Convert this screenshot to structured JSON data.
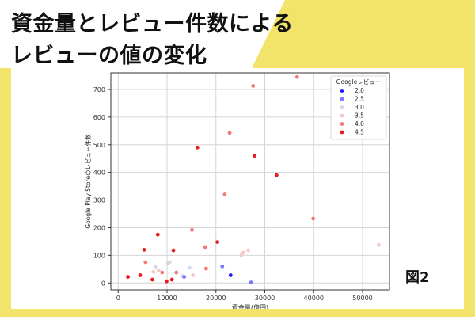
{
  "header": {
    "title_line1": "資金量とレビュー件数による",
    "title_line2": "レビューの値の変化"
  },
  "figure_label": "図2",
  "colors": {
    "background_yellow": "#f2e46a",
    "banner_stripe": "#e9d94f"
  },
  "chart_data": {
    "type": "scatter",
    "title": "",
    "xlabel": "資金量(億円)",
    "ylabel": "Google Play Storeのレビュー件数",
    "xlim": [
      -1500,
      55500
    ],
    "ylim": [
      -25,
      760
    ],
    "xticks": [
      0,
      10000,
      20000,
      30000,
      40000,
      50000
    ],
    "xtick_labels": [
      "0",
      "10000",
      "20000",
      "30000",
      "40000",
      "50000"
    ],
    "yticks": [
      0,
      100,
      200,
      300,
      400,
      500,
      600,
      700
    ],
    "ytick_labels": [
      "0",
      "100",
      "200",
      "300",
      "400",
      "500",
      "600",
      "700"
    ],
    "grid": true,
    "legend": {
      "title": "Googleレビュー",
      "placement": "top-right",
      "entries": [
        {
          "label": "2.0",
          "value": 2.0,
          "color": "#1a1aff"
        },
        {
          "label": "2.5",
          "value": 2.5,
          "color": "#7a7aff"
        },
        {
          "label": "3.0",
          "value": 3.0,
          "color": "#d6d6f5"
        },
        {
          "label": "3.5",
          "value": 3.5,
          "color": "#f7c8c8"
        },
        {
          "label": "4.0",
          "value": 4.0,
          "color": "#f27878"
        },
        {
          "label": "4.5",
          "value": 4.5,
          "color": "#e81c1c"
        }
      ]
    },
    "points": [
      {
        "x": 2000,
        "y": 22,
        "rating": 4.5
      },
      {
        "x": 4500,
        "y": 28,
        "rating": 4.5
      },
      {
        "x": 5300,
        "y": 120,
        "rating": 4.5
      },
      {
        "x": 5600,
        "y": 75,
        "rating": 4.0
      },
      {
        "x": 7000,
        "y": 12,
        "rating": 4.5
      },
      {
        "x": 7200,
        "y": 40,
        "rating": 3.5
      },
      {
        "x": 7600,
        "y": 58,
        "rating": 3.0
      },
      {
        "x": 8100,
        "y": 175,
        "rating": 4.5
      },
      {
        "x": 8300,
        "y": 45,
        "rating": 3.5
      },
      {
        "x": 9000,
        "y": 38,
        "rating": 4.0
      },
      {
        "x": 9900,
        "y": 6,
        "rating": 4.5
      },
      {
        "x": 10200,
        "y": 72,
        "rating": 3.5
      },
      {
        "x": 10500,
        "y": 75,
        "rating": 3.0
      },
      {
        "x": 11000,
        "y": 12,
        "rating": 4.5
      },
      {
        "x": 11300,
        "y": 118,
        "rating": 4.5
      },
      {
        "x": 11900,
        "y": 38,
        "rating": 4.0
      },
      {
        "x": 13200,
        "y": 25,
        "rating": 3.0
      },
      {
        "x": 13500,
        "y": 22,
        "rating": 2.5
      },
      {
        "x": 14600,
        "y": 55,
        "rating": 3.0
      },
      {
        "x": 15100,
        "y": 192,
        "rating": 4.0
      },
      {
        "x": 15300,
        "y": 28,
        "rating": 3.5
      },
      {
        "x": 16200,
        "y": 490,
        "rating": 4.5
      },
      {
        "x": 17800,
        "y": 130,
        "rating": 4.0
      },
      {
        "x": 18000,
        "y": 52,
        "rating": 4.0
      },
      {
        "x": 20300,
        "y": 148,
        "rating": 4.5
      },
      {
        "x": 21300,
        "y": 60,
        "rating": 2.5
      },
      {
        "x": 21800,
        "y": 320,
        "rating": 4.0
      },
      {
        "x": 22800,
        "y": 543,
        "rating": 4.0
      },
      {
        "x": 23000,
        "y": 28,
        "rating": 2.0
      },
      {
        "x": 25200,
        "y": 100,
        "rating": 3.5
      },
      {
        "x": 25600,
        "y": 110,
        "rating": 3.5
      },
      {
        "x": 26600,
        "y": 118,
        "rating": 3.5
      },
      {
        "x": 27200,
        "y": 2,
        "rating": 2.5
      },
      {
        "x": 27600,
        "y": 713,
        "rating": 4.0
      },
      {
        "x": 27900,
        "y": 460,
        "rating": 4.5
      },
      {
        "x": 32400,
        "y": 390,
        "rating": 4.5
      },
      {
        "x": 36600,
        "y": 745,
        "rating": 4.0
      },
      {
        "x": 39900,
        "y": 233,
        "rating": 4.0
      },
      {
        "x": 53300,
        "y": 138,
        "rating": 3.5
      }
    ]
  }
}
